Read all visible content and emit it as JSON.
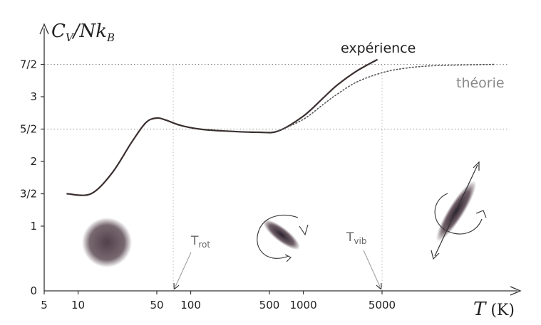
{
  "chart_data": {
    "type": "line",
    "ylabel_parts": [
      "C",
      "V",
      "/Nk",
      "B"
    ],
    "xlabel_parts": [
      "T",
      " (K)"
    ],
    "x_scale": "log",
    "xlim": [
      5,
      100000
    ],
    "ylim": [
      0,
      4
    ],
    "x_ticks": [
      {
        "value": 5,
        "label": "5"
      },
      {
        "value": 10,
        "label": "10"
      },
      {
        "value": 50,
        "label": "50"
      },
      {
        "value": 100,
        "label": "100"
      },
      {
        "value": 500,
        "label": "500"
      },
      {
        "value": 1000,
        "label": "1000"
      },
      {
        "value": 5000,
        "label": "5000"
      }
    ],
    "y_ticks": [
      {
        "value": 0,
        "label": "0"
      },
      {
        "value": 1,
        "label": "1"
      },
      {
        "value": 1.5,
        "label": "3/2"
      },
      {
        "value": 2,
        "label": "2"
      },
      {
        "value": 2.5,
        "label": "5/2"
      },
      {
        "value": 3,
        "label": "3"
      },
      {
        "value": 3.5,
        "label": "7/2"
      }
    ],
    "y_gridlines": [
      2.5,
      3.5
    ],
    "x_gridlines": [
      70,
      5000
    ],
    "series": [
      {
        "name": "expérience",
        "style": "solid",
        "color": "#3a2f2f",
        "points": [
          [
            8,
            1.5
          ],
          [
            13,
            1.5
          ],
          [
            20,
            1.82
          ],
          [
            30,
            2.3
          ],
          [
            40,
            2.6
          ],
          [
            50,
            2.67
          ],
          [
            60,
            2.64
          ],
          [
            80,
            2.56
          ],
          [
            120,
            2.5
          ],
          [
            200,
            2.47
          ],
          [
            400,
            2.45
          ],
          [
            600,
            2.47
          ],
          [
            1000,
            2.7
          ],
          [
            1500,
            2.98
          ],
          [
            2000,
            3.18
          ],
          [
            3000,
            3.4
          ],
          [
            4500,
            3.57
          ]
        ]
      },
      {
        "name": "théorie",
        "style": "dotted",
        "color": "#555555",
        "points": [
          [
            600,
            2.47
          ],
          [
            1000,
            2.65
          ],
          [
            1500,
            2.88
          ],
          [
            2000,
            3.04
          ],
          [
            3000,
            3.23
          ],
          [
            5000,
            3.37
          ],
          [
            8000,
            3.44
          ],
          [
            15000,
            3.48
          ],
          [
            50000,
            3.5
          ]
        ]
      }
    ],
    "annotations": [
      {
        "main": "T",
        "sub": "rot",
        "x": 70
      },
      {
        "main": "T",
        "sub": "vib",
        "x": 5000
      }
    ]
  },
  "colors": {
    "ink": "#3a2f2f",
    "molecule": "#4a3640",
    "grid": "#888888"
  }
}
